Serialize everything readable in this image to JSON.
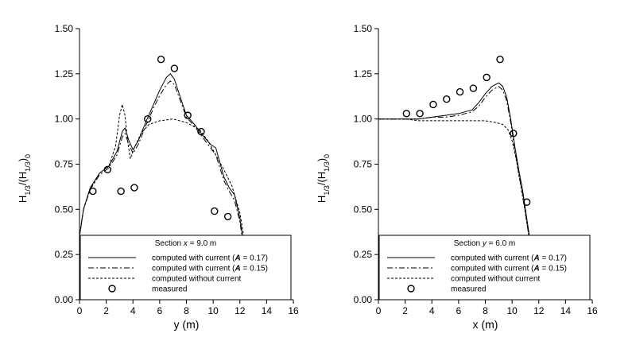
{
  "chart_data": [
    {
      "type": "line",
      "xlabel": "y (m)",
      "ylabel_main": "H",
      "ylabel_sub1": "1/3",
      "ylabel_mid": "/(H",
      "ylabel_sub2": "1/3",
      "ylabel_end": ")",
      "ylabel_sub3": "0",
      "xlim": [
        0,
        16
      ],
      "ylim": [
        0,
        1.5
      ],
      "xticks": [
        "0",
        "2",
        "4",
        "6",
        "8",
        "10",
        "12",
        "14",
        "16"
      ],
      "yticks": [
        "0.00",
        "0.25",
        "0.50",
        "0.75",
        "1.00",
        "1.25",
        "1.50"
      ],
      "legend": {
        "title_prefix": "Section ",
        "title_var": "x",
        "title_suffix": " = 9.0 m",
        "entries": [
          {
            "pre": "computed with current (",
            "var": "A",
            "post": " = 0.17)",
            "style": "solid"
          },
          {
            "pre": "computed with current (",
            "var": "A",
            "post": " = 0.15)",
            "style": "dashdot"
          },
          {
            "pre": "computed without current",
            "var": "",
            "post": "",
            "style": "dotted"
          },
          {
            "pre": "measured",
            "var": "",
            "post": "",
            "style": "marker"
          }
        ]
      },
      "series": [
        {
          "style": "solid",
          "x": [
            0,
            0.3,
            0.8,
            1.5,
            2.2,
            2.8,
            3.2,
            3.4,
            3.7,
            4.0,
            4.4,
            5.0,
            5.6,
            6.0,
            6.5,
            6.8,
            7.1,
            7.5,
            8.0,
            8.6,
            9.2,
            9.8,
            10.2,
            10.5,
            10.8,
            11.2,
            11.6,
            12.0,
            12.3,
            12.6,
            12.8,
            13.0
          ],
          "y": [
            0.35,
            0.5,
            0.62,
            0.7,
            0.74,
            0.82,
            0.93,
            0.95,
            0.88,
            0.83,
            0.88,
            0.99,
            1.09,
            1.16,
            1.23,
            1.25,
            1.22,
            1.13,
            1.02,
            0.97,
            0.91,
            0.86,
            0.84,
            0.76,
            0.68,
            0.62,
            0.58,
            0.45,
            0.3,
            0.15,
            0.05,
            0.0
          ]
        },
        {
          "style": "dashdot",
          "x": [
            0,
            0.3,
            0.8,
            1.5,
            2.2,
            2.8,
            3.2,
            3.4,
            3.7,
            4.0,
            4.4,
            5.0,
            5.6,
            6.0,
            6.5,
            6.8,
            7.1,
            7.5,
            8.0,
            8.6,
            9.2,
            9.8,
            10.2,
            10.5,
            10.8,
            11.2,
            11.6,
            12.0,
            12.3,
            12.6,
            12.8,
            13.0
          ],
          "y": [
            0.35,
            0.5,
            0.61,
            0.69,
            0.73,
            0.8,
            0.9,
            0.92,
            0.86,
            0.81,
            0.86,
            0.97,
            1.07,
            1.13,
            1.19,
            1.21,
            1.19,
            1.11,
            1.01,
            0.96,
            0.9,
            0.84,
            0.8,
            0.73,
            0.66,
            0.6,
            0.55,
            0.43,
            0.28,
            0.14,
            0.04,
            0.0
          ]
        },
        {
          "style": "dotted",
          "x": [
            0,
            0.3,
            0.8,
            1.5,
            2.2,
            2.7,
            3.0,
            3.2,
            3.4,
            3.6,
            3.8,
            4.1,
            4.6,
            5.2,
            6.0,
            7.0,
            8.0,
            9.0,
            9.6,
            10.2,
            10.8,
            11.4,
            12.0,
            12.4,
            12.8,
            13.0
          ],
          "y": [
            0.35,
            0.5,
            0.61,
            0.7,
            0.74,
            0.85,
            1.02,
            1.08,
            1.02,
            0.88,
            0.78,
            0.84,
            0.92,
            0.97,
            0.99,
            1.0,
            0.98,
            0.94,
            0.88,
            0.8,
            0.72,
            0.63,
            0.48,
            0.3,
            0.1,
            0.0
          ]
        }
      ],
      "measured": {
        "x": [
          1.0,
          2.1,
          3.1,
          4.1,
          5.1,
          6.1,
          7.1,
          8.1,
          9.1,
          10.1,
          11.1
        ],
        "y": [
          0.6,
          0.72,
          0.6,
          0.62,
          1.0,
          1.33,
          1.28,
          1.02,
          0.93,
          0.49,
          0.46
        ]
      }
    },
    {
      "type": "line",
      "xlabel": "x (m)",
      "ylabel_main": "H",
      "ylabel_sub1": "1/3",
      "ylabel_mid": "/(H",
      "ylabel_sub2": "1/3",
      "ylabel_end": ")",
      "ylabel_sub3": "0",
      "xlim": [
        0,
        16
      ],
      "ylim": [
        0,
        1.5
      ],
      "xticks": [
        "0",
        "2",
        "4",
        "6",
        "8",
        "10",
        "12",
        "14",
        "16"
      ],
      "yticks": [
        "0.00",
        "0.25",
        "0.50",
        "0.75",
        "1.00",
        "1.25",
        "1.50"
      ],
      "legend": {
        "title_prefix": "Section ",
        "title_var": "y",
        "title_suffix": " = 6.0 m",
        "entries": [
          {
            "pre": "computed with current (",
            "var": "A",
            "post": " = 0.17)",
            "style": "solid"
          },
          {
            "pre": "computed with current (",
            "var": "A",
            "post": " = 0.15)",
            "style": "dashdot"
          },
          {
            "pre": "computed without current",
            "var": "",
            "post": "",
            "style": "dotted"
          },
          {
            "pre": "measured",
            "var": "",
            "post": "",
            "style": "marker"
          }
        ]
      },
      "series": [
        {
          "style": "solid",
          "x": [
            0,
            1,
            2,
            3,
            4,
            5,
            6,
            7,
            7.5,
            8.0,
            8.5,
            9.0,
            9.3,
            9.6,
            9.9,
            10.2,
            10.5,
            10.8,
            11.1,
            11.4,
            11.7,
            12.0
          ],
          "y": [
            1.0,
            1.0,
            1.0,
            1.0,
            1.01,
            1.02,
            1.03,
            1.05,
            1.09,
            1.14,
            1.18,
            1.2,
            1.18,
            1.12,
            1.0,
            0.85,
            0.72,
            0.6,
            0.45,
            0.3,
            0.12,
            0.0
          ]
        },
        {
          "style": "dashdot",
          "x": [
            0,
            1,
            2,
            3,
            4,
            5,
            6,
            7,
            7.5,
            8.0,
            8.5,
            9.0,
            9.3,
            9.6,
            9.9,
            10.2,
            10.5,
            10.8,
            11.1,
            11.4,
            11.7,
            12.0
          ],
          "y": [
            1.0,
            1.0,
            1.0,
            1.0,
            1.01,
            1.01,
            1.02,
            1.04,
            1.07,
            1.12,
            1.16,
            1.18,
            1.16,
            1.1,
            0.98,
            0.83,
            0.7,
            0.58,
            0.43,
            0.28,
            0.1,
            0.0
          ]
        },
        {
          "style": "dotted",
          "x": [
            0,
            1,
            2,
            3,
            4,
            5,
            6,
            7,
            8,
            8.8,
            9.3,
            9.7,
            10.0,
            10.3,
            10.6,
            10.9,
            11.2,
            11.5,
            11.8,
            12.0
          ],
          "y": [
            1.0,
            1.0,
            1.0,
            0.99,
            0.99,
            0.99,
            0.99,
            0.99,
            0.99,
            0.98,
            0.97,
            0.94,
            0.88,
            0.78,
            0.65,
            0.52,
            0.38,
            0.24,
            0.08,
            0.0
          ]
        }
      ],
      "measured": {
        "x": [
          2.1,
          3.1,
          4.1,
          5.1,
          6.1,
          7.1,
          8.1,
          9.1,
          10.1,
          11.1
        ],
        "y": [
          1.03,
          1.03,
          1.08,
          1.11,
          1.15,
          1.17,
          1.23,
          1.33,
          0.92,
          0.54
        ]
      }
    }
  ]
}
